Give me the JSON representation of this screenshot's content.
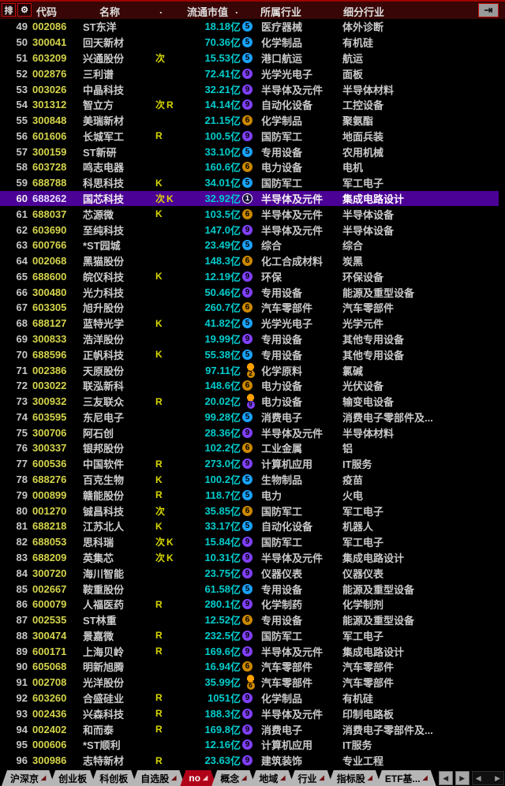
{
  "colors": {
    "selection_bg": "#4b0096",
    "code_yellow": "#d4d44c",
    "value_cyan": "#00cccc",
    "tag_yellow": "#d8d800",
    "badge_blue": "#1aa3ff",
    "badge_purple": "#8040ff",
    "badge_orange": "#cc8800",
    "bell_orange": "#ffa000",
    "header_bg": "#380606",
    "active_tab_red": "#b00018"
  },
  "header": {
    "rank_icon_glyph": "排",
    "gear_icon_glyph": "⚙",
    "goto_icon_glyph": "⇥",
    "code_label": "代码",
    "name_label": "名称",
    "tag_dot": ".",
    "market_cap_label": "流通市值",
    "sort_dot": ".",
    "industry_label": "所属行业",
    "sub_industry_label": "细分行业"
  },
  "rows": [
    {
      "rank": "49",
      "code": "002086",
      "name": "ST东洋",
      "tags": "",
      "value": "18.18",
      "unit": "亿",
      "bell": false,
      "badge": {
        "n": "5",
        "style": "blue"
      },
      "industry": "医疗器械",
      "sub_industry": "体外诊断",
      "selected": false
    },
    {
      "rank": "50",
      "code": "300041",
      "name": "回天新材",
      "tags": "",
      "value": "70.36",
      "unit": "亿",
      "bell": false,
      "badge": {
        "n": "5",
        "style": "blue"
      },
      "industry": "化学制品",
      "sub_industry": "有机硅",
      "selected": false
    },
    {
      "rank": "51",
      "code": "603209",
      "name": "兴通股份",
      "tags": "次",
      "value": "15.53",
      "unit": "亿",
      "bell": false,
      "badge": {
        "n": "5",
        "style": "blue"
      },
      "industry": "港口航运",
      "sub_industry": "航运",
      "selected": false
    },
    {
      "rank": "52",
      "code": "002876",
      "name": "三利谱",
      "tags": "",
      "value": "72.41",
      "unit": "亿",
      "bell": false,
      "badge": {
        "n": "9",
        "style": "purple"
      },
      "industry": "光学光电子",
      "sub_industry": "面板",
      "selected": false
    },
    {
      "rank": "53",
      "code": "003026",
      "name": "中晶科技",
      "tags": "",
      "value": "32.21",
      "unit": "亿",
      "bell": false,
      "badge": {
        "n": "9",
        "style": "purple"
      },
      "industry": "半导体及元件",
      "sub_industry": "半导体材料",
      "selected": false
    },
    {
      "rank": "54",
      "code": "301312",
      "name": "智立方",
      "tags": "次R",
      "value": "14.14",
      "unit": "亿",
      "bell": false,
      "badge": {
        "n": "9",
        "style": "purple"
      },
      "industry": "自动化设备",
      "sub_industry": "工控设备",
      "selected": false
    },
    {
      "rank": "55",
      "code": "300848",
      "name": "美瑞新材",
      "tags": "",
      "value": "21.15",
      "unit": "亿",
      "bell": false,
      "badge": {
        "n": "6",
        "style": "orange"
      },
      "industry": "化学制品",
      "sub_industry": "聚氨酯",
      "selected": false
    },
    {
      "rank": "56",
      "code": "601606",
      "name": "长城军工",
      "tags": "R",
      "value": "100.5",
      "unit": "亿",
      "bell": false,
      "badge": {
        "n": "9",
        "style": "purple"
      },
      "industry": "国防军工",
      "sub_industry": "地面兵装",
      "selected": false
    },
    {
      "rank": "57",
      "code": "300159",
      "name": "ST新研",
      "tags": "",
      "value": "33.10",
      "unit": "亿",
      "bell": false,
      "badge": {
        "n": "5",
        "style": "blue"
      },
      "industry": "专用设备",
      "sub_industry": "农用机械",
      "selected": false
    },
    {
      "rank": "58",
      "code": "603728",
      "name": "鸣志电器",
      "tags": "",
      "value": "160.6",
      "unit": "亿",
      "bell": false,
      "badge": {
        "n": "6",
        "style": "orange"
      },
      "industry": "电力设备",
      "sub_industry": "电机",
      "selected": false
    },
    {
      "rank": "59",
      "code": "688788",
      "name": "科思科技",
      "tags": "K",
      "value": "34.01",
      "unit": "亿",
      "bell": false,
      "badge": {
        "n": "5",
        "style": "blue"
      },
      "industry": "国防军工",
      "sub_industry": "军工电子",
      "selected": false
    },
    {
      "rank": "60",
      "code": "688262",
      "name": "国芯科技",
      "tags": "次K",
      "value": "32.92",
      "unit": "亿",
      "bell": false,
      "badge": {
        "n": "1",
        "style": "inverse"
      },
      "industry": "半导体及元件",
      "sub_industry": "集成电路设计",
      "selected": true
    },
    {
      "rank": "61",
      "code": "688037",
      "name": "芯源微",
      "tags": "K",
      "value": "103.5",
      "unit": "亿",
      "bell": false,
      "badge": {
        "n": "6",
        "style": "orange"
      },
      "industry": "半导体及元件",
      "sub_industry": "半导体设备",
      "selected": false
    },
    {
      "rank": "62",
      "code": "603690",
      "name": "至纯科技",
      "tags": "",
      "value": "147.0",
      "unit": "亿",
      "bell": false,
      "badge": {
        "n": "9",
        "style": "purple"
      },
      "industry": "半导体及元件",
      "sub_industry": "半导体设备",
      "selected": false
    },
    {
      "rank": "63",
      "code": "600766",
      "name": "*ST园城",
      "tags": "",
      "value": "23.49",
      "unit": "亿",
      "bell": false,
      "badge": {
        "n": "5",
        "style": "blue"
      },
      "industry": "综合",
      "sub_industry": "综合",
      "selected": false
    },
    {
      "rank": "64",
      "code": "002068",
      "name": "黑猫股份",
      "tags": "",
      "value": "148.3",
      "unit": "亿",
      "bell": false,
      "badge": {
        "n": "6",
        "style": "orange"
      },
      "industry": "化工合成材料",
      "sub_industry": "炭黑",
      "selected": false
    },
    {
      "rank": "65",
      "code": "688600",
      "name": "皖仪科技",
      "tags": "K",
      "value": "12.19",
      "unit": "亿",
      "bell": false,
      "badge": {
        "n": "9",
        "style": "purple"
      },
      "industry": "环保",
      "sub_industry": "环保设备",
      "selected": false
    },
    {
      "rank": "66",
      "code": "300480",
      "name": "光力科技",
      "tags": "",
      "value": "50.46",
      "unit": "亿",
      "bell": false,
      "badge": {
        "n": "9",
        "style": "purple"
      },
      "industry": "专用设备",
      "sub_industry": "能源及重型设备",
      "selected": false
    },
    {
      "rank": "67",
      "code": "603305",
      "name": "旭升股份",
      "tags": "",
      "value": "260.7",
      "unit": "亿",
      "bell": false,
      "badge": {
        "n": "6",
        "style": "orange"
      },
      "industry": "汽车零部件",
      "sub_industry": "汽车零部件",
      "selected": false
    },
    {
      "rank": "68",
      "code": "688127",
      "name": "蓝特光学",
      "tags": "K",
      "value": "41.82",
      "unit": "亿",
      "bell": false,
      "badge": {
        "n": "5",
        "style": "blue"
      },
      "industry": "光学光电子",
      "sub_industry": "光学元件",
      "selected": false
    },
    {
      "rank": "69",
      "code": "300833",
      "name": "浩洋股份",
      "tags": "",
      "value": "19.99",
      "unit": "亿",
      "bell": false,
      "badge": {
        "n": "9",
        "style": "purple"
      },
      "industry": "专用设备",
      "sub_industry": "其他专用设备",
      "selected": false
    },
    {
      "rank": "70",
      "code": "688596",
      "name": "正帆科技",
      "tags": "K",
      "value": "55.38",
      "unit": "亿",
      "bell": false,
      "badge": {
        "n": "5",
        "style": "blue"
      },
      "industry": "专用设备",
      "sub_industry": "其他专用设备",
      "selected": false
    },
    {
      "rank": "71",
      "code": "002386",
      "name": "天原股份",
      "tags": "",
      "value": "97.11",
      "unit": "亿",
      "bell": true,
      "badge": {
        "n": "2",
        "style": "orange"
      },
      "industry": "化学原料",
      "sub_industry": "氯碱",
      "selected": false
    },
    {
      "rank": "72",
      "code": "003022",
      "name": "联泓新科",
      "tags": "",
      "value": "148.6",
      "unit": "亿",
      "bell": false,
      "badge": {
        "n": "6",
        "style": "orange"
      },
      "industry": "电力设备",
      "sub_industry": "光伏设备",
      "selected": false
    },
    {
      "rank": "73",
      "code": "300932",
      "name": "三友联众",
      "tags": "R",
      "value": "20.02",
      "unit": "亿",
      "bell": true,
      "badge": {
        "n": "9",
        "style": "purple"
      },
      "industry": "电力设备",
      "sub_industry": "输变电设备",
      "selected": false
    },
    {
      "rank": "74",
      "code": "603595",
      "name": "东尼电子",
      "tags": "",
      "value": "99.28",
      "unit": "亿",
      "bell": false,
      "badge": {
        "n": "5",
        "style": "blue"
      },
      "industry": "消费电子",
      "sub_industry": "消费电子零部件及...",
      "selected": false
    },
    {
      "rank": "75",
      "code": "300706",
      "name": "阿石创",
      "tags": "",
      "value": "28.36",
      "unit": "亿",
      "bell": false,
      "badge": {
        "n": "9",
        "style": "purple"
      },
      "industry": "半导体及元件",
      "sub_industry": "半导体材料",
      "selected": false
    },
    {
      "rank": "76",
      "code": "300337",
      "name": "银邦股份",
      "tags": "",
      "value": "102.2",
      "unit": "亿",
      "bell": false,
      "badge": {
        "n": "6",
        "style": "orange"
      },
      "industry": "工业金属",
      "sub_industry": "铝",
      "selected": false
    },
    {
      "rank": "77",
      "code": "600536",
      "name": "中国软件",
      "tags": "R",
      "value": "273.0",
      "unit": "亿",
      "bell": false,
      "badge": {
        "n": "9",
        "style": "purple"
      },
      "industry": "计算机应用",
      "sub_industry": "IT服务",
      "selected": false
    },
    {
      "rank": "78",
      "code": "688276",
      "name": "百克生物",
      "tags": "K",
      "value": "100.2",
      "unit": "亿",
      "bell": false,
      "badge": {
        "n": "5",
        "style": "blue"
      },
      "industry": "生物制品",
      "sub_industry": "疫苗",
      "selected": false
    },
    {
      "rank": "79",
      "code": "000899",
      "name": "赣能股份",
      "tags": "R",
      "value": "118.7",
      "unit": "亿",
      "bell": false,
      "badge": {
        "n": "5",
        "style": "blue"
      },
      "industry": "电力",
      "sub_industry": "火电",
      "selected": false
    },
    {
      "rank": "80",
      "code": "001270",
      "name": "铖昌科技",
      "tags": "次",
      "value": "35.85",
      "unit": "亿",
      "bell": false,
      "badge": {
        "n": "6",
        "style": "orange"
      },
      "industry": "国防军工",
      "sub_industry": "军工电子",
      "selected": false
    },
    {
      "rank": "81",
      "code": "688218",
      "name": "江苏北人",
      "tags": "K",
      "value": "33.17",
      "unit": "亿",
      "bell": false,
      "badge": {
        "n": "5",
        "style": "blue"
      },
      "industry": "自动化设备",
      "sub_industry": "机器人",
      "selected": false
    },
    {
      "rank": "82",
      "code": "688053",
      "name": "思科瑞",
      "tags": "次K",
      "value": "15.84",
      "unit": "亿",
      "bell": false,
      "badge": {
        "n": "9",
        "style": "purple"
      },
      "industry": "国防军工",
      "sub_industry": "军工电子",
      "selected": false
    },
    {
      "rank": "83",
      "code": "688209",
      "name": "英集芯",
      "tags": "次K",
      "value": "10.31",
      "unit": "亿",
      "bell": false,
      "badge": {
        "n": "9",
        "style": "purple"
      },
      "industry": "半导体及元件",
      "sub_industry": "集成电路设计",
      "selected": false
    },
    {
      "rank": "84",
      "code": "300720",
      "name": "海川智能",
      "tags": "",
      "value": "23.75",
      "unit": "亿",
      "bell": false,
      "badge": {
        "n": "9",
        "style": "purple"
      },
      "industry": "仪器仪表",
      "sub_industry": "仪器仪表",
      "selected": false
    },
    {
      "rank": "85",
      "code": "002667",
      "name": "鞍重股份",
      "tags": "",
      "value": "61.58",
      "unit": "亿",
      "bell": false,
      "badge": {
        "n": "5",
        "style": "blue"
      },
      "industry": "专用设备",
      "sub_industry": "能源及重型设备",
      "selected": false
    },
    {
      "rank": "86",
      "code": "600079",
      "name": "人福医药",
      "tags": "R",
      "value": "280.1",
      "unit": "亿",
      "bell": false,
      "badge": {
        "n": "9",
        "style": "purple"
      },
      "industry": "化学制药",
      "sub_industry": "化学制剂",
      "selected": false
    },
    {
      "rank": "87",
      "code": "002535",
      "name": "ST林重",
      "tags": "",
      "value": "12.52",
      "unit": "亿",
      "bell": false,
      "badge": {
        "n": "6",
        "style": "orange"
      },
      "industry": "专用设备",
      "sub_industry": "能源及重型设备",
      "selected": false
    },
    {
      "rank": "88",
      "code": "300474",
      "name": "景嘉微",
      "tags": "R",
      "value": "232.5",
      "unit": "亿",
      "bell": false,
      "badge": {
        "n": "9",
        "style": "purple"
      },
      "industry": "国防军工",
      "sub_industry": "军工电子",
      "selected": false
    },
    {
      "rank": "89",
      "code": "600171",
      "name": "上海贝岭",
      "tags": "R",
      "value": "169.6",
      "unit": "亿",
      "bell": false,
      "badge": {
        "n": "9",
        "style": "purple"
      },
      "industry": "半导体及元件",
      "sub_industry": "集成电路设计",
      "selected": false
    },
    {
      "rank": "90",
      "code": "605068",
      "name": "明新旭腾",
      "tags": "",
      "value": "16.94",
      "unit": "亿",
      "bell": false,
      "badge": {
        "n": "6",
        "style": "orange"
      },
      "industry": "汽车零部件",
      "sub_industry": "汽车零部件",
      "selected": false
    },
    {
      "rank": "91",
      "code": "002708",
      "name": "光洋股份",
      "tags": "",
      "value": "35.99",
      "unit": "亿",
      "bell": true,
      "badge": {
        "n": "6",
        "style": "orange"
      },
      "industry": "汽车零部件",
      "sub_industry": "汽车零部件",
      "selected": false
    },
    {
      "rank": "92",
      "code": "603260",
      "name": "合盛硅业",
      "tags": "R",
      "value": "1051",
      "unit": "亿",
      "bell": false,
      "badge": {
        "n": "9",
        "style": "purple"
      },
      "industry": "化学制品",
      "sub_industry": "有机硅",
      "selected": false
    },
    {
      "rank": "93",
      "code": "002436",
      "name": "兴森科技",
      "tags": "R",
      "value": "188.3",
      "unit": "亿",
      "bell": false,
      "badge": {
        "n": "9",
        "style": "purple"
      },
      "industry": "半导体及元件",
      "sub_industry": "印制电路板",
      "selected": false
    },
    {
      "rank": "94",
      "code": "002402",
      "name": "和而泰",
      "tags": "R",
      "value": "169.8",
      "unit": "亿",
      "bell": false,
      "badge": {
        "n": "9",
        "style": "purple"
      },
      "industry": "消费电子",
      "sub_industry": "消费电子零部件及...",
      "selected": false
    },
    {
      "rank": "95",
      "code": "000606",
      "name": "*ST顺利",
      "tags": "",
      "value": "12.16",
      "unit": "亿",
      "bell": false,
      "badge": {
        "n": "9",
        "style": "purple"
      },
      "industry": "计算机应用",
      "sub_industry": "IT服务",
      "selected": false
    },
    {
      "rank": "96",
      "code": "300986",
      "name": "志特新材",
      "tags": "R",
      "value": "23.63",
      "unit": "亿",
      "bell": false,
      "badge": {
        "n": "9",
        "style": "purple"
      },
      "industry": "建筑装饰",
      "sub_industry": "专业工程",
      "selected": false
    }
  ],
  "tabbar": {
    "marker_glyph": "◢",
    "nav_left": "◀",
    "nav_right": "▶",
    "scroll_left": "◀",
    "scroll_right": "▶",
    "tabs": [
      {
        "label": "沪深京",
        "marker": true,
        "active": false
      },
      {
        "label": "创业板",
        "marker": false,
        "active": false
      },
      {
        "label": "科创板",
        "marker": false,
        "active": false
      },
      {
        "label": "自选股",
        "marker": true,
        "active": false
      },
      {
        "label": "no",
        "marker": true,
        "active": true
      },
      {
        "label": "概念",
        "marker": true,
        "active": false
      },
      {
        "label": "地域",
        "marker": true,
        "active": false
      },
      {
        "label": "行业",
        "marker": true,
        "active": false
      },
      {
        "label": "指标股",
        "marker": true,
        "active": false
      },
      {
        "label": "ETF基...",
        "marker": true,
        "active": false
      }
    ]
  }
}
